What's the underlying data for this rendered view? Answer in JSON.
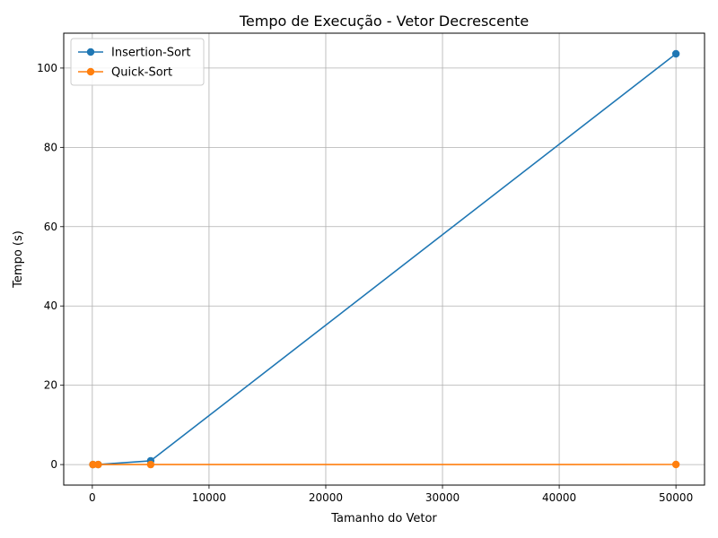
{
  "chart_data": {
    "type": "line",
    "title": "Tempo de Execução - Vetor Decrescente",
    "xlabel": "Tamanho do Vetor",
    "ylabel": "Tempo (s)",
    "xlim": [
      -2450,
      52450
    ],
    "ylim": [
      -5.18,
      108.8
    ],
    "xticks": [
      0,
      10000,
      20000,
      30000,
      40000,
      50000
    ],
    "yticks": [
      0,
      20,
      40,
      60,
      80,
      100
    ],
    "grid": true,
    "legend_position": "top-left",
    "x": [
      50,
      500,
      5000,
      50000
    ],
    "series": [
      {
        "name": "Insertion-Sort",
        "color": "#1f77b4",
        "marker": "circle",
        "values": [
          0.0,
          0.01,
          0.95,
          103.6
        ]
      },
      {
        "name": "Quick-Sort",
        "color": "#ff7f0e",
        "marker": "circle",
        "values": [
          0.0,
          0.0,
          0.0,
          0.02
        ]
      }
    ]
  }
}
